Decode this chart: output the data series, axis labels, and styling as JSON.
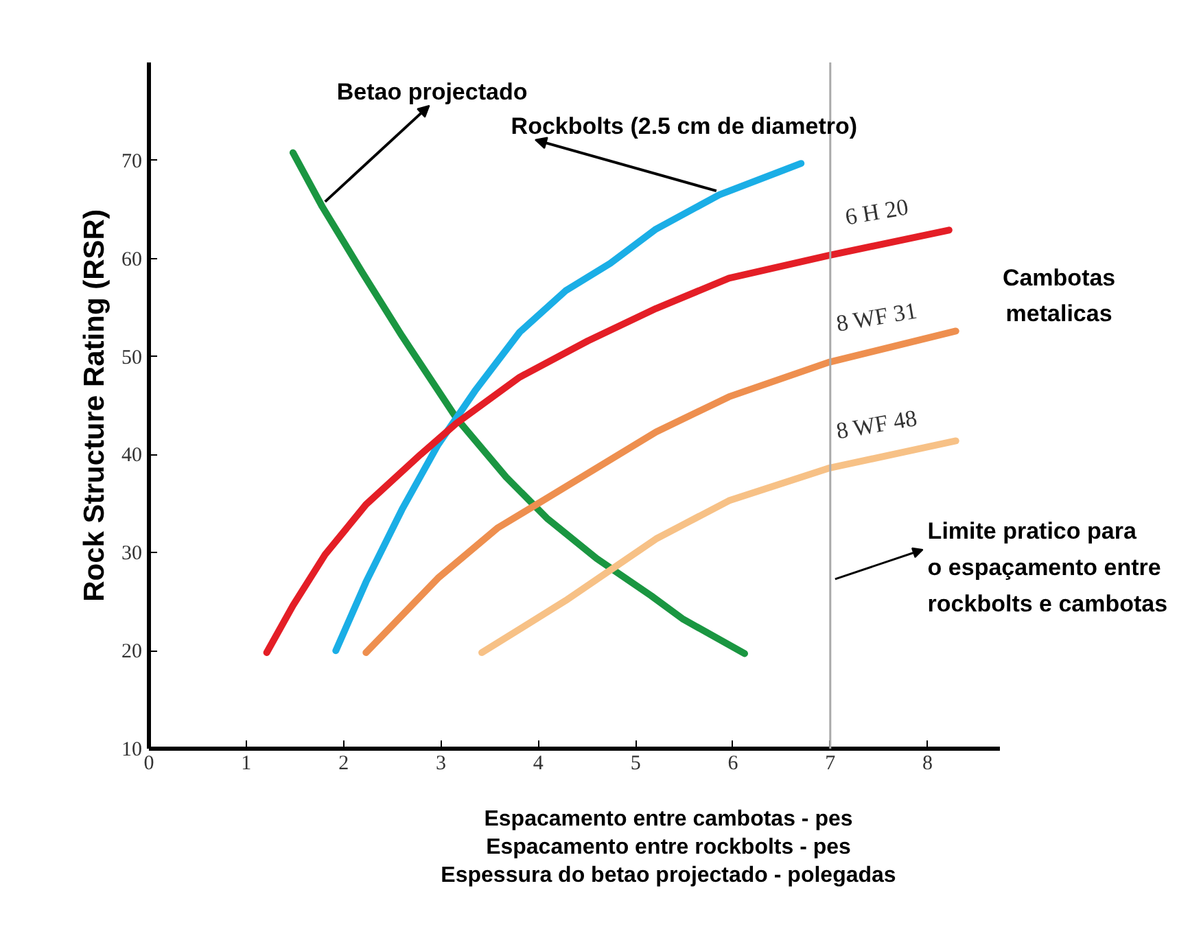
{
  "chart_data": {
    "type": "line",
    "xlabel": "Espacamento entre cambotas - pes\nEspacamento entre rockbolts - pes\nEspessura do betao projectado - polegadas",
    "ylabel": "Rock Structure Rating (RSR)",
    "xlim": [
      0,
      8.75
    ],
    "ylim": [
      10,
      80
    ],
    "xticks": [
      0,
      1,
      2,
      3,
      4,
      5,
      6,
      7,
      8
    ],
    "yticks": [
      10,
      20,
      30,
      40,
      50,
      60,
      70
    ],
    "grid": false,
    "marker": "none",
    "line_style": "solid",
    "series": [
      {
        "name": "Betao projectado",
        "color": "#1a9641",
        "x": [
          1.48,
          1.78,
          2.19,
          2.6,
          3.16,
          3.67,
          4.09,
          4.6,
          5.16,
          5.49,
          6.12
        ],
        "values": [
          70.8,
          65.3,
          58.6,
          52.1,
          43.7,
          37.7,
          33.5,
          29.4,
          25.6,
          23.2,
          19.7
        ]
      },
      {
        "name": "Rockbolts (2.5 cm de diametro)",
        "color": "#1aaee6",
        "x": [
          1.92,
          2.23,
          2.6,
          2.97,
          3.35,
          3.81,
          4.28,
          4.74,
          5.21,
          5.86,
          6.7
        ],
        "values": [
          20,
          27,
          34.4,
          41,
          46.5,
          52.5,
          56.7,
          59.5,
          63,
          66.5,
          69.7
        ]
      },
      {
        "name": "6 H 20",
        "color": "#e41e26",
        "x": [
          1.21,
          1.48,
          1.81,
          2.23,
          2.79,
          3.16,
          3.81,
          4.51,
          5.21,
          5.96,
          6.98,
          8.22
        ],
        "values": [
          19.8,
          24.6,
          29.8,
          34.9,
          40,
          43.2,
          47.9,
          51.6,
          54.9,
          58,
          60.3,
          62.9
        ]
      },
      {
        "name": "8 WF 31",
        "color": "#ee8f4f",
        "x": [
          2.23,
          2.97,
          3.58,
          4.28,
          5.21,
          5.96,
          6.98,
          8.29
        ],
        "values": [
          19.8,
          27.4,
          32.5,
          36.7,
          42.3,
          45.9,
          49.4,
          52.6
        ]
      },
      {
        "name": "8 WF 48",
        "color": "#f7c186",
        "x": [
          3.42,
          4.28,
          5.21,
          5.96,
          6.98,
          8.29
        ],
        "values": [
          19.8,
          25.1,
          31.4,
          35.3,
          38.6,
          41.4
        ]
      }
    ],
    "ref_lines": [
      {
        "axis": "x",
        "value": 7,
        "label": "Limite pratico para\no espaçamento entre\nrockbolts e cambotas",
        "color": "#aaaaaa"
      }
    ],
    "annotations": [
      "Cambotas metalicas"
    ]
  }
}
